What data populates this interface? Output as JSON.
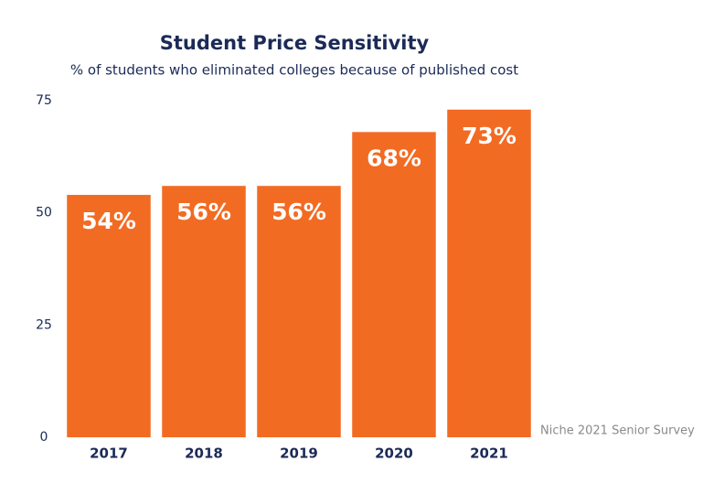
{
  "chart_data": {
    "type": "bar",
    "title": "Student Price Sensitivity",
    "subtitle": "% of students who eliminated colleges because of published cost",
    "categories": [
      "2017",
      "2018",
      "2019",
      "2020",
      "2021"
    ],
    "values": [
      54,
      56,
      56,
      68,
      73
    ],
    "value_labels": [
      "54%",
      "56%",
      "56%",
      "68%",
      "73%"
    ],
    "color": "#f26b23",
    "ylim": [
      0,
      75
    ],
    "yticks": [
      0,
      25,
      50,
      75
    ],
    "grid": false,
    "source": "Niche 2021 Senior Survey"
  }
}
